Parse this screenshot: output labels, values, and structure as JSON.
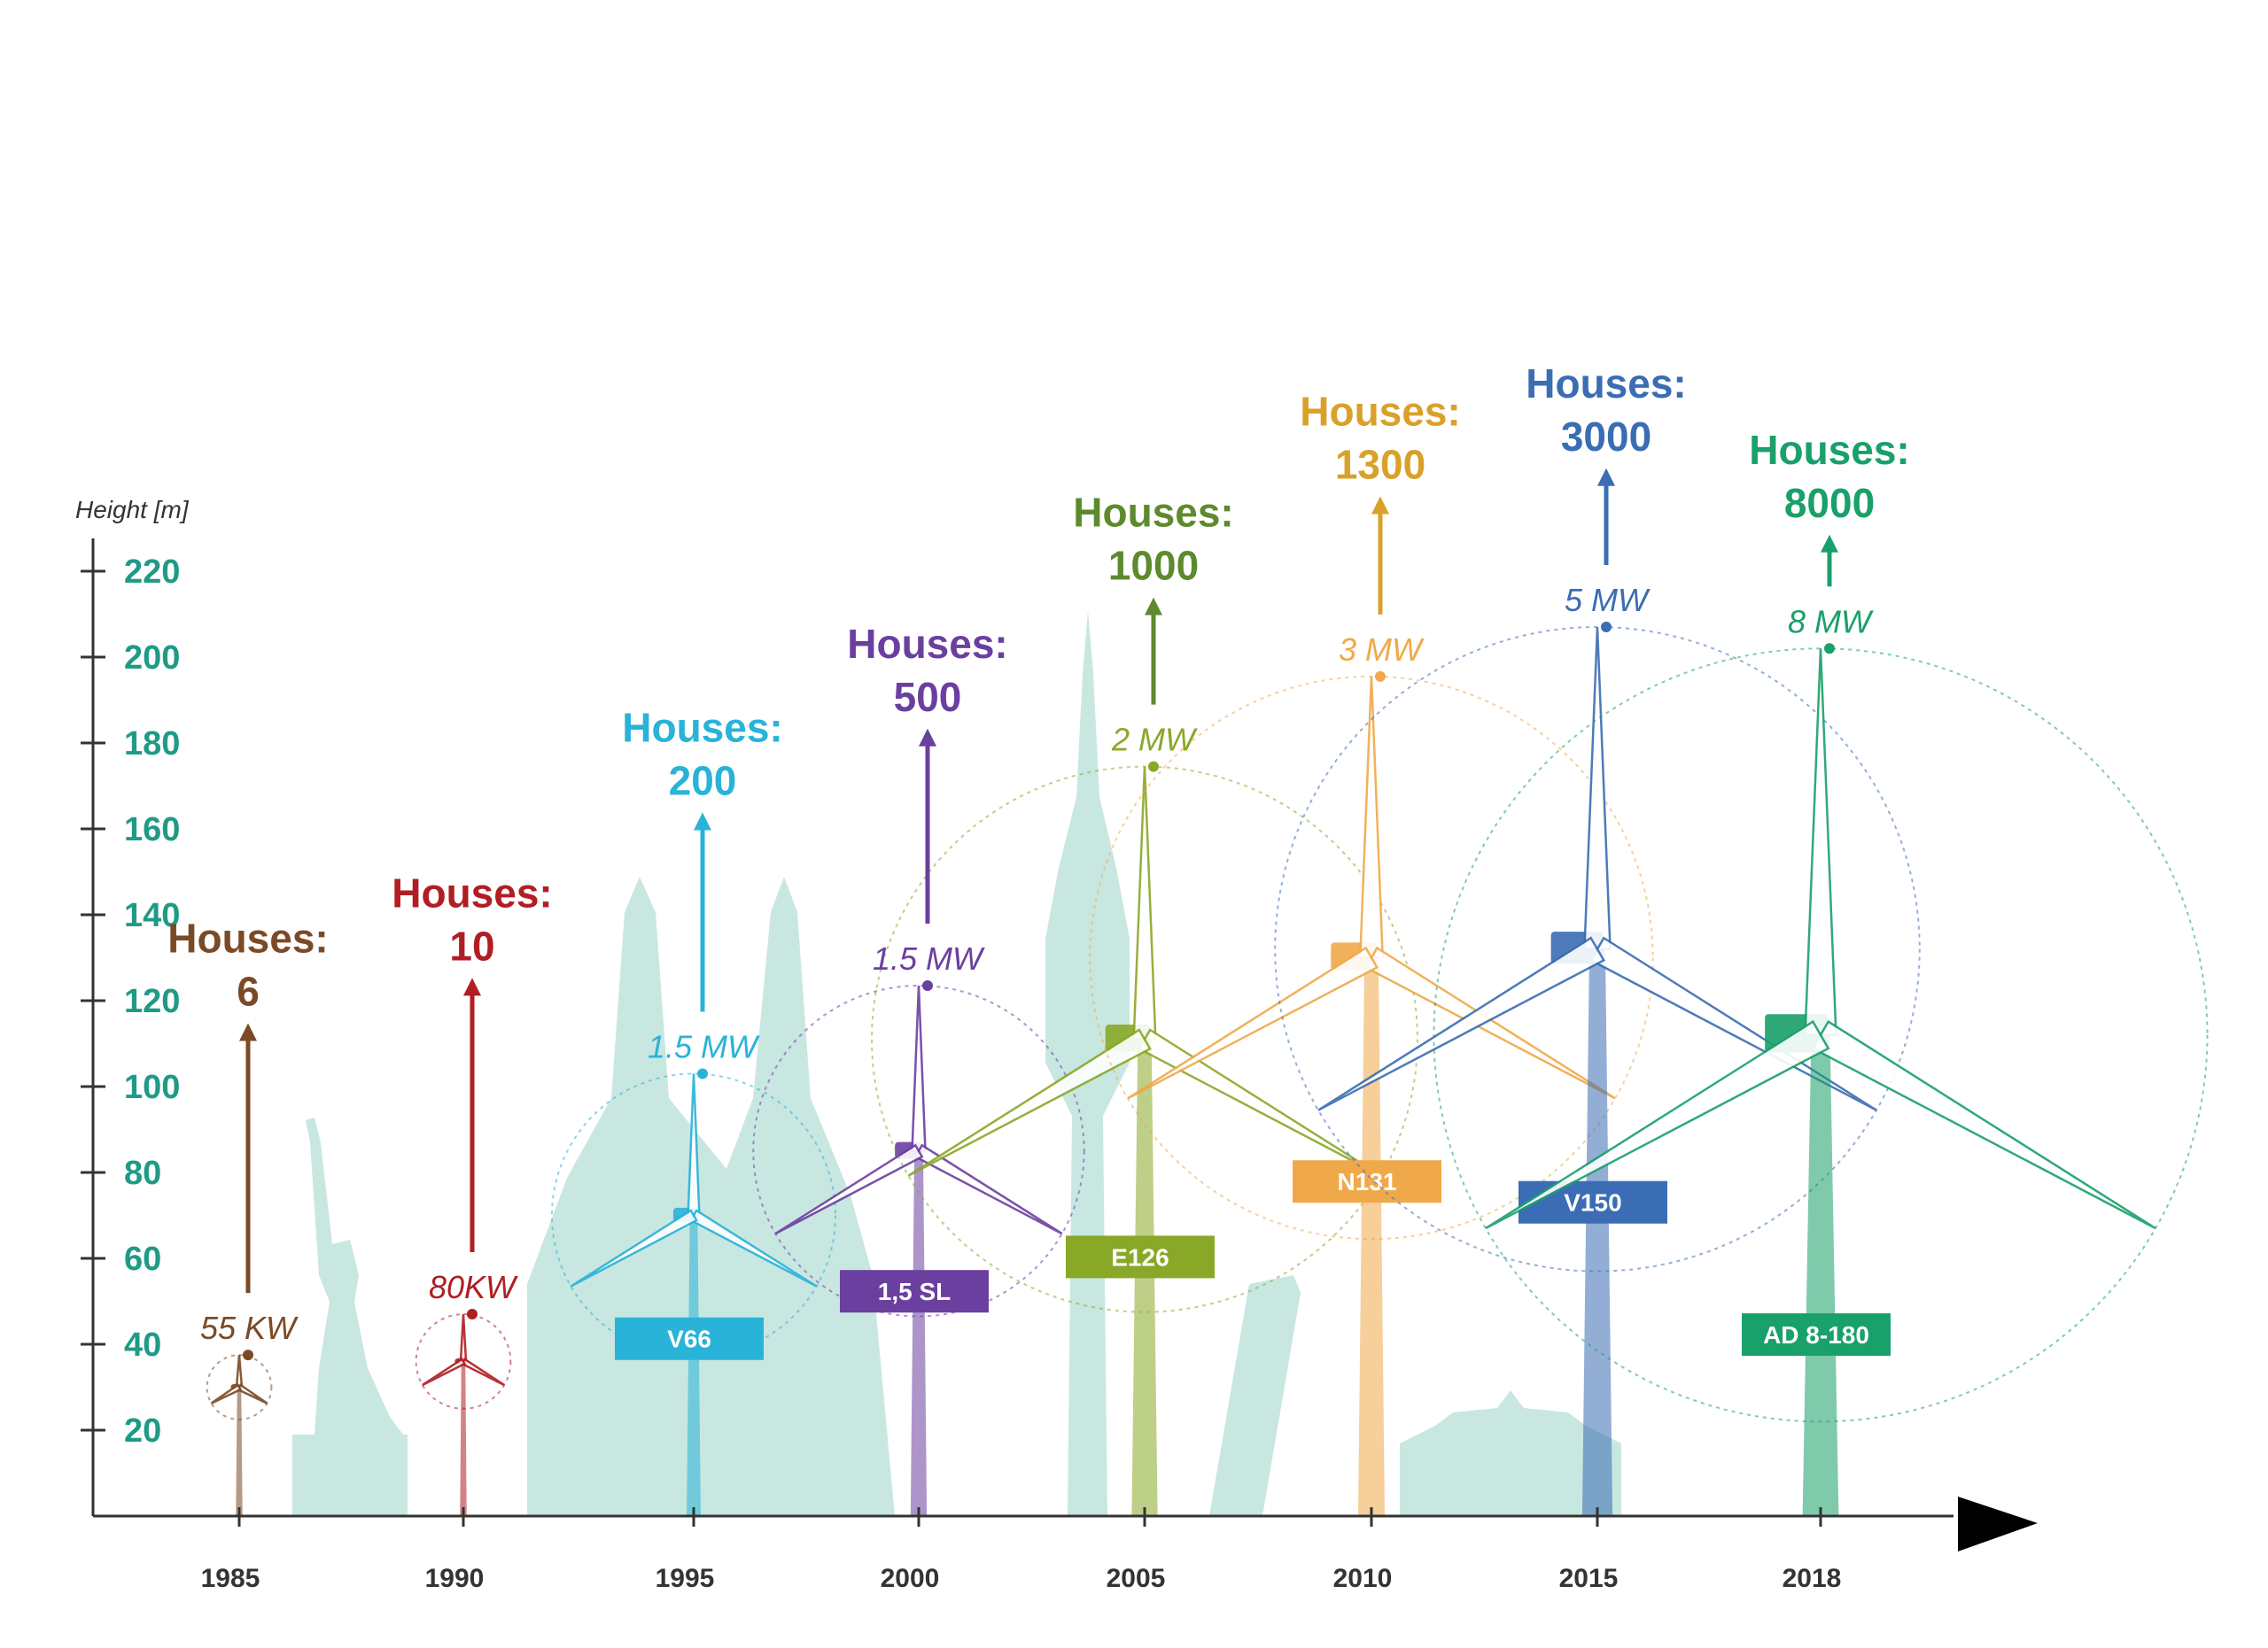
{
  "chart_data": {
    "type": "infographic",
    "ylabel": "Height [m]",
    "yticks": [
      20,
      40,
      60,
      80,
      100,
      120,
      140,
      160,
      180,
      200,
      220
    ],
    "ylim": [
      0,
      230
    ],
    "x_labels": [
      "1985",
      "1990",
      "1995",
      "2000",
      "2005",
      "2010",
      "2015",
      "2018"
    ],
    "houses_label": "Houses:",
    "turbines": [
      {
        "year": "1985",
        "power": "55 KW",
        "houses": "6",
        "model": "",
        "hub_height": 30,
        "rotor_diameter": 15,
        "color": "#7a4a26"
      },
      {
        "year": "1990",
        "power": "80KW",
        "houses": "10",
        "model": "",
        "hub_height": 36,
        "rotor_diameter": 22,
        "color": "#b01e24"
      },
      {
        "year": "1995",
        "power": "1.5 MW",
        "houses": "200",
        "model": "V66",
        "hub_height": 70,
        "rotor_diameter": 66,
        "color": "#29b3d8"
      },
      {
        "year": "2000",
        "power": "1.5 MW",
        "houses": "500",
        "model": "1,5 SL",
        "hub_height": 85,
        "rotor_diameter": 77,
        "color": "#6b3fa0"
      },
      {
        "year": "2005",
        "power": "2 MW",
        "houses": "1000",
        "model": "E126",
        "hub_height": 111,
        "rotor_diameter": 127,
        "color": "#8aa828"
      },
      {
        "year": "2010",
        "power": "3 MW",
        "houses": "1300",
        "model": "N131",
        "hub_height": 130,
        "rotor_diameter": 131,
        "color": "#f0a94a"
      },
      {
        "year": "2015",
        "power": "5 MW",
        "houses": "3000",
        "model": "V150",
        "hub_height": 132,
        "rotor_diameter": 150,
        "color": "#3a6db3"
      },
      {
        "year": "2018",
        "power": "8 MW",
        "houses": "8000",
        "model": "AD 8-180",
        "hub_height": 112,
        "rotor_diameter": 180,
        "color": "#1aa06a"
      }
    ],
    "colors": {
      "houses_1985": "#7a4a26",
      "houses_1990": "#b01e24",
      "houses_1995": "#29b3d8",
      "houses_2000": "#6b3fa0",
      "houses_2005": "#5e8a2e",
      "houses_2010": "#d9a12a",
      "houses_2015": "#3a6db3",
      "houses_2018": "#1aa06a",
      "axis_tick": "#1f9a86",
      "landmark": "#bfe3dc"
    }
  }
}
